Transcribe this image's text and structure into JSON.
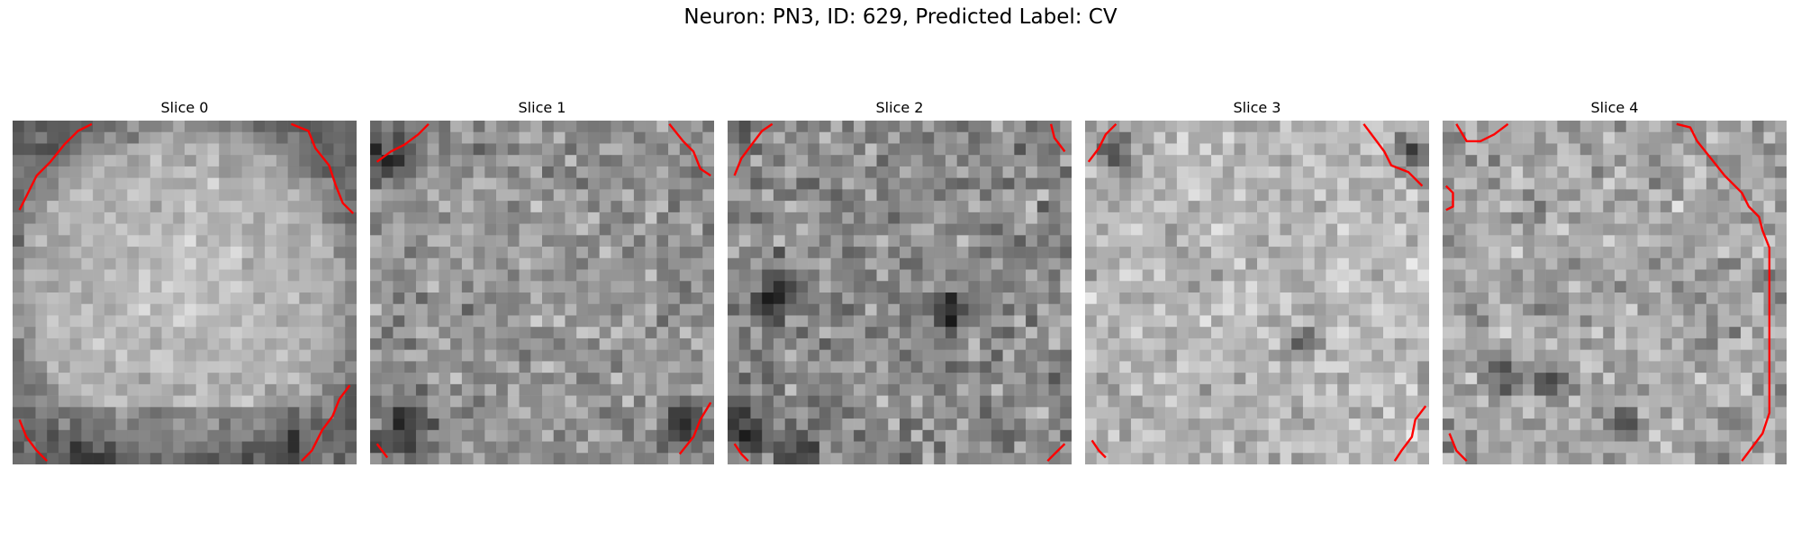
{
  "figure": {
    "title": "Neuron: PN3, ID: 629, Predicted Label: CV"
  },
  "panels": [
    {
      "title": "Slice 0",
      "base": 170,
      "contrast": 28,
      "noise": 22,
      "seed": 11,
      "ring": true,
      "dark_spots": [],
      "contours": [
        [
          [
            0.02,
            0.26
          ],
          [
            0.04,
            0.22
          ],
          [
            0.07,
            0.16
          ],
          [
            0.11,
            0.12
          ],
          [
            0.15,
            0.07
          ],
          [
            0.19,
            0.03
          ],
          [
            0.23,
            0.01
          ]
        ],
        [
          [
            0.81,
            0.01
          ],
          [
            0.86,
            0.03
          ],
          [
            0.88,
            0.08
          ],
          [
            0.92,
            0.13
          ],
          [
            0.94,
            0.19
          ],
          [
            0.96,
            0.24
          ],
          [
            0.99,
            0.27
          ]
        ],
        [
          [
            0.98,
            0.77
          ],
          [
            0.95,
            0.81
          ],
          [
            0.93,
            0.86
          ],
          [
            0.9,
            0.9
          ],
          [
            0.87,
            0.96
          ],
          [
            0.84,
            0.99
          ]
        ],
        [
          [
            0.02,
            0.87
          ],
          [
            0.04,
            0.92
          ],
          [
            0.07,
            0.96
          ],
          [
            0.1,
            0.99
          ]
        ]
      ]
    },
    {
      "title": "Slice 1",
      "base": 150,
      "contrast": 8,
      "noise": 34,
      "seed": 23,
      "ring": false,
      "dark_spots": [
        [
          0.06,
          0.1,
          0.12
        ],
        [
          0.1,
          0.9,
          0.12
        ],
        [
          0.92,
          0.88,
          0.1
        ]
      ],
      "contours": [
        [
          [
            0.02,
            0.12
          ],
          [
            0.06,
            0.09
          ],
          [
            0.1,
            0.07
          ],
          [
            0.14,
            0.04
          ],
          [
            0.17,
            0.01
          ]
        ],
        [
          [
            0.87,
            0.01
          ],
          [
            0.91,
            0.06
          ],
          [
            0.94,
            0.09
          ],
          [
            0.96,
            0.14
          ],
          [
            0.99,
            0.16
          ]
        ],
        [
          [
            0.99,
            0.82
          ],
          [
            0.96,
            0.87
          ],
          [
            0.94,
            0.92
          ],
          [
            0.9,
            0.97
          ]
        ],
        [
          [
            0.02,
            0.94
          ],
          [
            0.05,
            0.98
          ]
        ]
      ]
    },
    {
      "title": "Slice 2",
      "base": 140,
      "contrast": 6,
      "noise": 38,
      "seed": 37,
      "ring": false,
      "dark_spots": [
        [
          0.14,
          0.52,
          0.1
        ],
        [
          0.65,
          0.57,
          0.08
        ],
        [
          0.05,
          0.9,
          0.1
        ],
        [
          0.2,
          0.97,
          0.08
        ]
      ],
      "contours": [
        [
          [
            0.02,
            0.16
          ],
          [
            0.04,
            0.11
          ],
          [
            0.07,
            0.07
          ],
          [
            0.1,
            0.03
          ],
          [
            0.13,
            0.01
          ]
        ],
        [
          [
            0.94,
            0.01
          ],
          [
            0.95,
            0.05
          ],
          [
            0.98,
            0.09
          ]
        ],
        [
          [
            0.98,
            0.94
          ],
          [
            0.95,
            0.97
          ],
          [
            0.93,
            0.99
          ]
        ],
        [
          [
            0.02,
            0.94
          ],
          [
            0.04,
            0.97
          ],
          [
            0.06,
            0.99
          ]
        ]
      ]
    },
    {
      "title": "Slice 3",
      "base": 185,
      "contrast": 4,
      "noise": 30,
      "seed": 53,
      "ring": false,
      "dark_spots": [
        [
          0.63,
          0.65,
          0.07
        ],
        [
          0.1,
          0.1,
          0.09
        ],
        [
          0.95,
          0.1,
          0.08
        ]
      ],
      "contours": [
        [
          [
            0.01,
            0.12
          ],
          [
            0.04,
            0.08
          ],
          [
            0.06,
            0.04
          ],
          [
            0.09,
            0.01
          ]
        ],
        [
          [
            0.81,
            0.01
          ],
          [
            0.84,
            0.05
          ],
          [
            0.87,
            0.09
          ],
          [
            0.89,
            0.13
          ],
          [
            0.94,
            0.15
          ],
          [
            0.98,
            0.19
          ]
        ],
        [
          [
            0.99,
            0.83
          ],
          [
            0.96,
            0.87
          ],
          [
            0.95,
            0.92
          ],
          [
            0.92,
            0.96
          ],
          [
            0.9,
            0.99
          ]
        ],
        [
          [
            0.02,
            0.93
          ],
          [
            0.04,
            0.96
          ],
          [
            0.06,
            0.98
          ]
        ]
      ]
    },
    {
      "title": "Slice 4",
      "base": 165,
      "contrast": 4,
      "noise": 34,
      "seed": 71,
      "ring": false,
      "dark_spots": [
        [
          0.19,
          0.74,
          0.08
        ],
        [
          0.31,
          0.76,
          0.06
        ],
        [
          0.53,
          0.89,
          0.07
        ]
      ],
      "contours": [
        [
          [
            0.04,
            0.01
          ],
          [
            0.07,
            0.06
          ],
          [
            0.11,
            0.06
          ],
          [
            0.15,
            0.04
          ],
          [
            0.19,
            0.01
          ]
        ],
        [
          [
            0.68,
            0.01
          ],
          [
            0.72,
            0.02
          ],
          [
            0.74,
            0.06
          ],
          [
            0.78,
            0.11
          ],
          [
            0.82,
            0.16
          ],
          [
            0.87,
            0.21
          ],
          [
            0.89,
            0.25
          ],
          [
            0.92,
            0.28
          ],
          [
            0.93,
            0.32
          ],
          [
            0.95,
            0.37
          ],
          [
            0.95,
            0.5
          ],
          [
            0.95,
            0.65
          ],
          [
            0.95,
            0.85
          ],
          [
            0.93,
            0.91
          ],
          [
            0.9,
            0.95
          ],
          [
            0.87,
            0.99
          ]
        ],
        [
          [
            0.01,
            0.19
          ],
          [
            0.03,
            0.21
          ],
          [
            0.03,
            0.25
          ],
          [
            0.01,
            0.26
          ]
        ],
        [
          [
            0.02,
            0.91
          ],
          [
            0.04,
            0.96
          ],
          [
            0.07,
            0.99
          ]
        ]
      ]
    }
  ]
}
